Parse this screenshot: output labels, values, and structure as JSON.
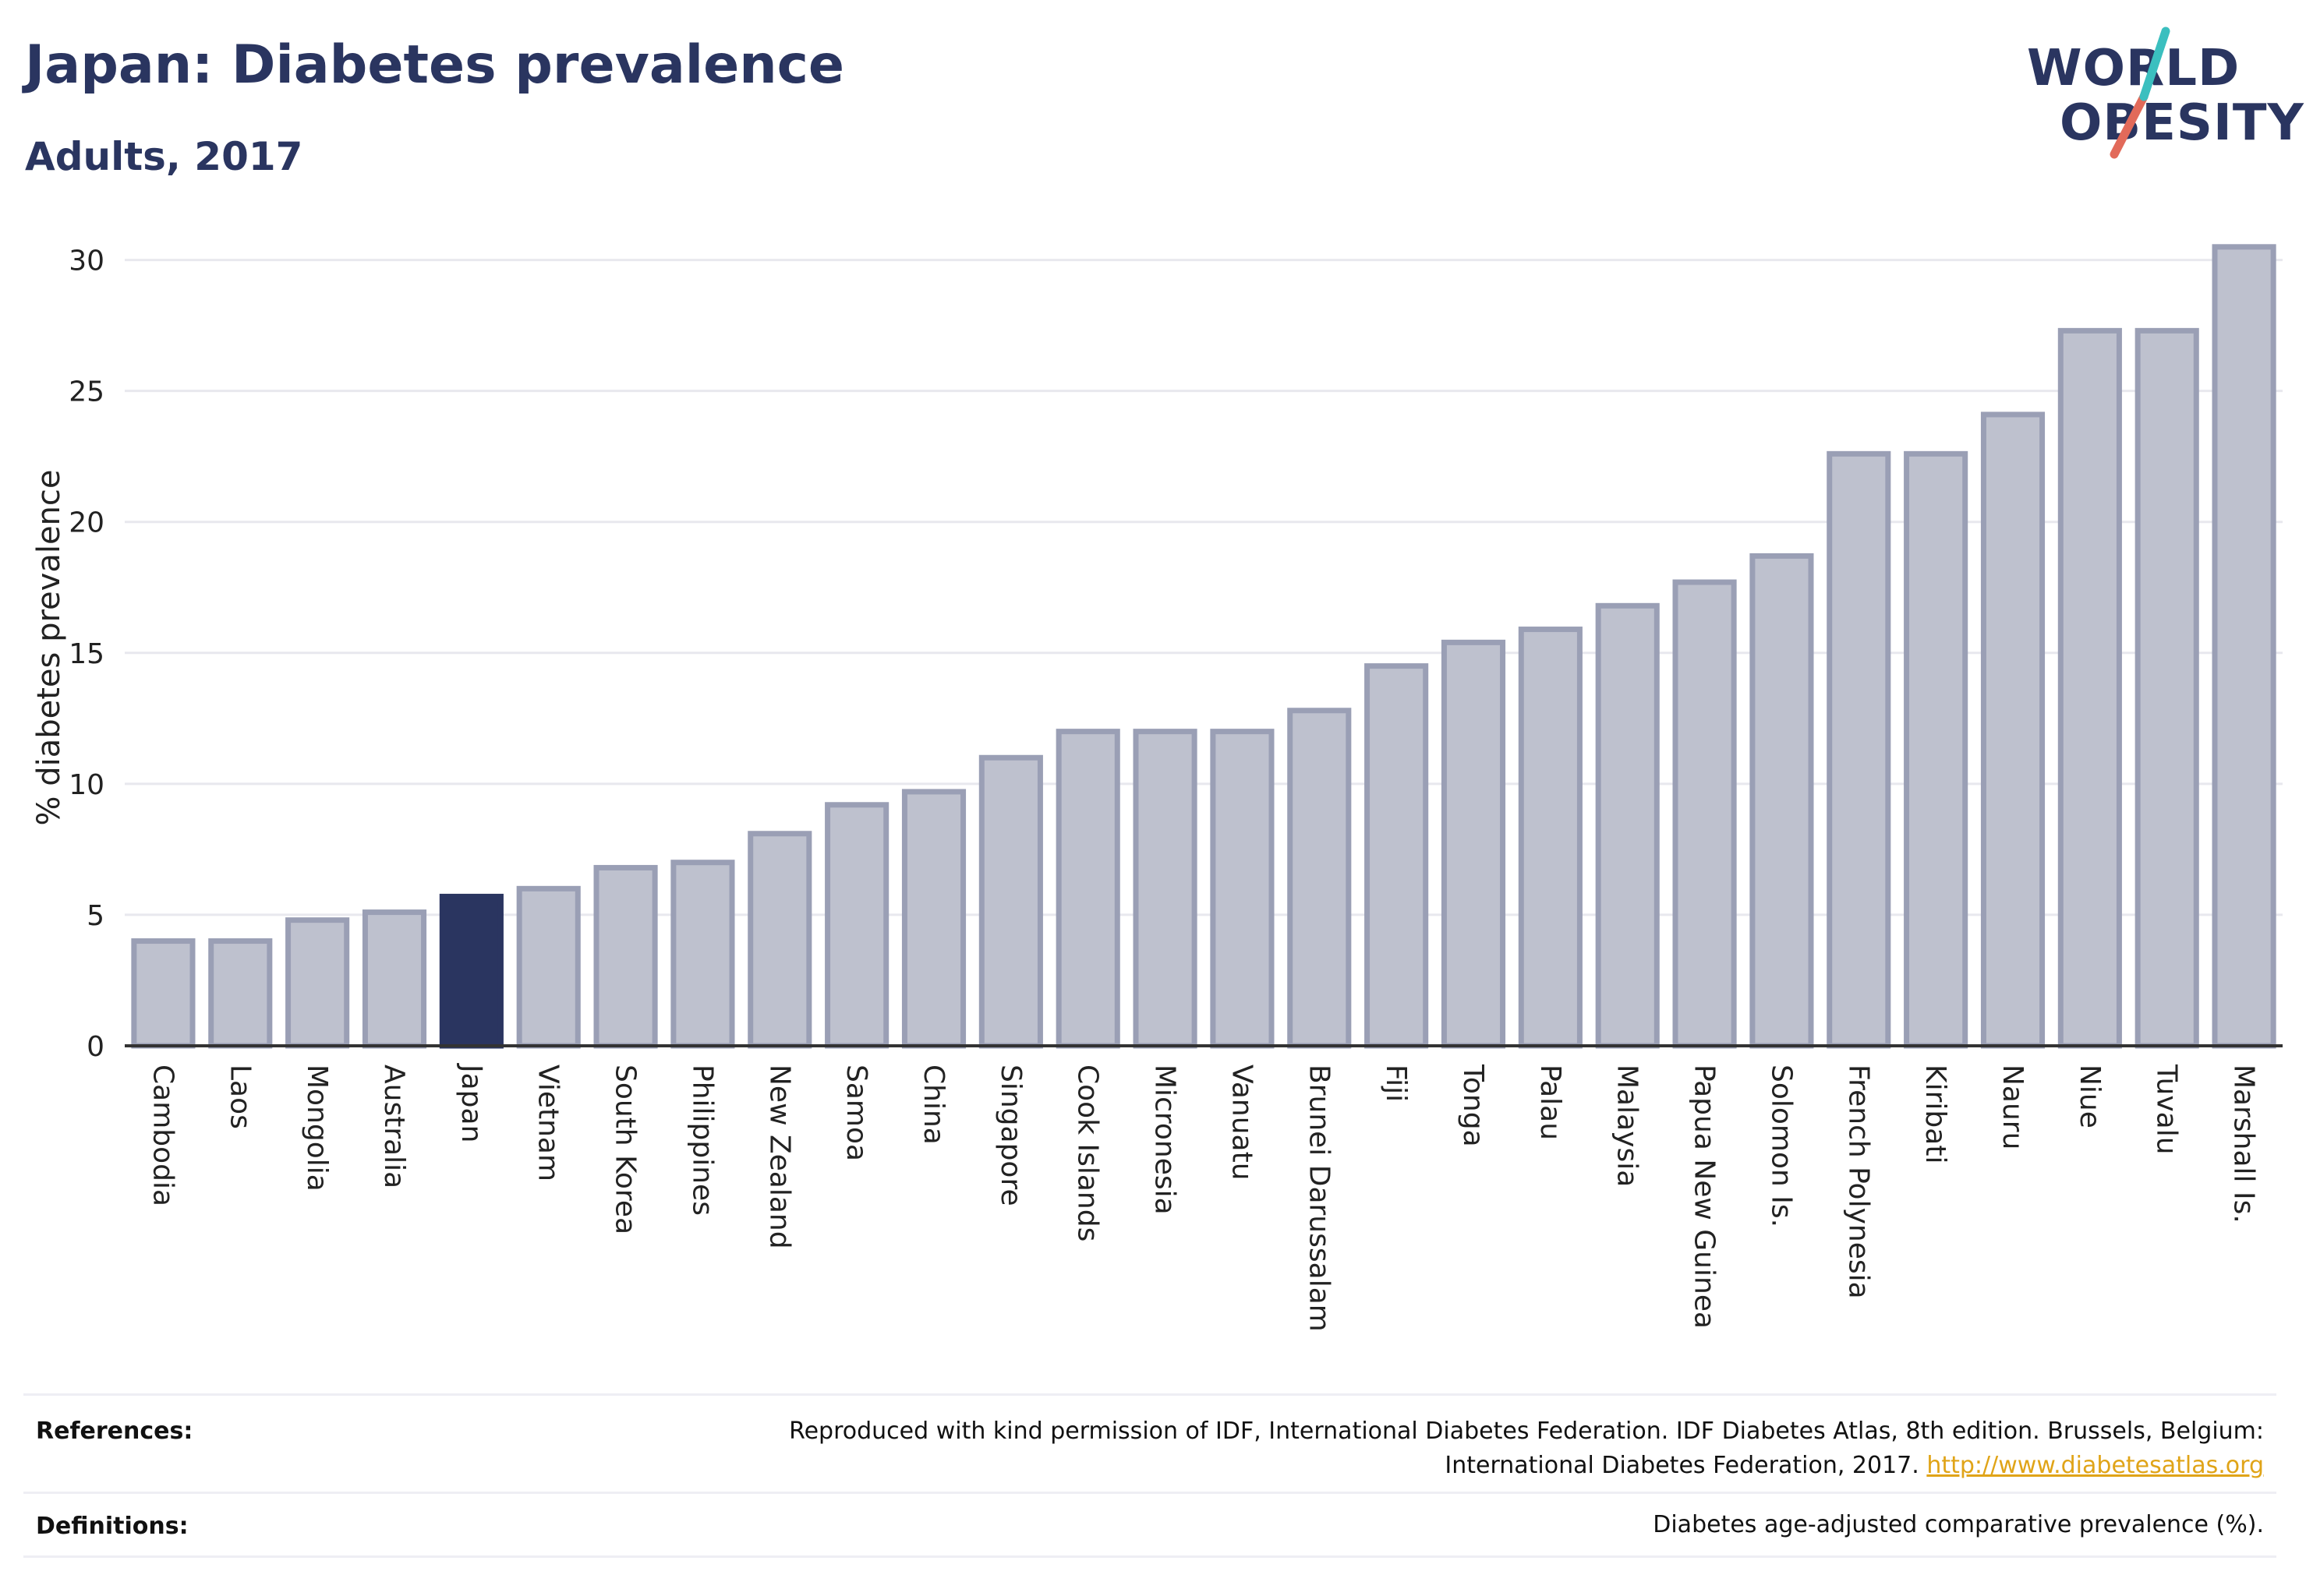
{
  "header": {
    "title": "Japan: Diabetes prevalence",
    "subtitle": "Adults, 2017"
  },
  "logo": {
    "line1": "WORLD",
    "line2": "OBESITY",
    "colors": {
      "text": "#2a3560",
      "slash_teal": "#3bbfbf",
      "slash_coral": "#e26a5a"
    }
  },
  "chart_data": {
    "type": "bar",
    "title": "Japan: Diabetes prevalence",
    "subtitle": "Adults, 2017",
    "ylabel": "% diabetes prevalence",
    "xlabel": "",
    "ylim": [
      0,
      31
    ],
    "yticks": [
      0,
      5,
      10,
      15,
      20,
      25,
      30
    ],
    "grid": true,
    "highlight": "Japan",
    "colors": {
      "bar": "#bec1ce",
      "bar_edge": "#9a9fb5",
      "highlight": "#2a3560",
      "grid": "#e8e8ee",
      "axis": "#333333"
    },
    "categories": [
      "Cambodia",
      "Laos",
      "Mongolia",
      "Australia",
      "Japan",
      "Vietnam",
      "South Korea",
      "Philippines",
      "New Zealand",
      "Samoa",
      "China",
      "Singapore",
      "Cook Islands",
      "Micronesia",
      "Vanuatu",
      "Brunei Darussalam",
      "Fiji",
      "Tonga",
      "Palau",
      "Malaysia",
      "Papua New Guinea",
      "Solomon Is.",
      "French Polynesia",
      "Kiribati",
      "Nauru",
      "Niue",
      "Tuvalu",
      "Marshall Is."
    ],
    "values": [
      4.0,
      4.0,
      4.8,
      5.1,
      5.7,
      6.0,
      6.8,
      7.0,
      8.1,
      9.2,
      9.7,
      11.0,
      12.0,
      12.0,
      12.0,
      12.8,
      14.5,
      15.4,
      15.9,
      16.8,
      17.7,
      18.7,
      22.6,
      22.6,
      24.1,
      27.3,
      27.3,
      30.5
    ]
  },
  "footer": {
    "references_label": "References:",
    "references_line1": "Reproduced with kind permission of IDF, International Diabetes Federation. IDF Diabetes Atlas, 8th edition. Brussels, Belgium:",
    "references_line2": "International Diabetes Federation, 2017.",
    "references_link": "http://www.diabetesatlas.org",
    "definitions_label": "Definitions:",
    "definitions_text": "Diabetes age-adjusted comparative prevalence (%)."
  }
}
